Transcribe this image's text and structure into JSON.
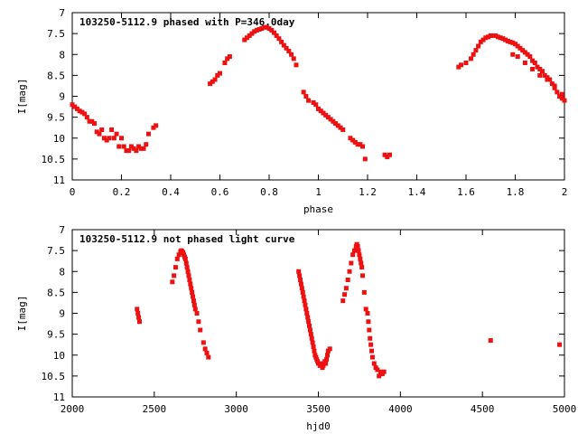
{
  "chart_data": [
    {
      "type": "scatter",
      "title": "103250-5112.9 phased with P=346.0day",
      "xlabel": "phase",
      "ylabel": "I[mag]",
      "xlim": [
        0,
        2
      ],
      "ylim": [
        7,
        11
      ],
      "y_inverted": true,
      "x_ticks": [
        "0",
        "0.2",
        "0.4",
        "0.6",
        "0.8",
        "1",
        "1.2",
        "1.4",
        "1.6",
        "1.8",
        "2"
      ],
      "y_ticks": [
        "7",
        "7.5",
        "8",
        "8.5",
        "9",
        "9.5",
        "10",
        "10.5",
        "11"
      ],
      "grid": false,
      "marker_color": "#ee1111",
      "series": [
        {
          "x": [
            0.0,
            0.01,
            0.02,
            0.03,
            0.04,
            0.05,
            0.06,
            0.07,
            0.08,
            0.09,
            0.1,
            0.11,
            0.12,
            0.13,
            0.14,
            0.15,
            0.16,
            0.17,
            0.18,
            0.19,
            0.2,
            0.21,
            0.22,
            0.23,
            0.24,
            0.25,
            0.26,
            0.27,
            0.28,
            0.29,
            0.3,
            0.31,
            0.33,
            0.34,
            0.56,
            0.57,
            0.58,
            0.59,
            0.6,
            0.62,
            0.63,
            0.64,
            0.7,
            0.71,
            0.72,
            0.73,
            0.74,
            0.75,
            0.76,
            0.77,
            0.78,
            0.79,
            0.8,
            0.81,
            0.82,
            0.83,
            0.84,
            0.85,
            0.86,
            0.87,
            0.88,
            0.89,
            0.9,
            0.91,
            0.94,
            0.95,
            0.96,
            0.98,
            0.99,
            1.0,
            1.01,
            1.02,
            1.03,
            1.04,
            1.05,
            1.06,
            1.07,
            1.08,
            1.09,
            1.1,
            1.13,
            1.14,
            1.15,
            1.16,
            1.17,
            1.18,
            1.19,
            1.27,
            1.28,
            1.29,
            1.57,
            1.58,
            1.6,
            1.62,
            1.63,
            1.64,
            1.65,
            1.66,
            1.67,
            1.68,
            1.69,
            1.7,
            1.71,
            1.72,
            1.73,
            1.74,
            1.75,
            1.76,
            1.77,
            1.78,
            1.79,
            1.8,
            1.81,
            1.82,
            1.83,
            1.84,
            1.85,
            1.86,
            1.87,
            1.88,
            1.89,
            1.9,
            1.91,
            1.92,
            1.93,
            1.94,
            1.95,
            1.96,
            1.97,
            1.98,
            1.99,
            2.0,
            1.79,
            1.81,
            1.84,
            1.87,
            1.9,
            1.93,
            1.96,
            1.99
          ],
          "y": [
            9.2,
            9.25,
            9.3,
            9.35,
            9.38,
            9.42,
            9.5,
            9.6,
            9.6,
            9.65,
            9.85,
            9.9,
            9.8,
            10.0,
            10.05,
            10.0,
            9.8,
            10.0,
            9.9,
            10.2,
            10.0,
            10.2,
            10.3,
            10.3,
            10.2,
            10.25,
            10.3,
            10.2,
            10.25,
            10.25,
            10.15,
            9.9,
            9.75,
            9.7,
            8.7,
            8.65,
            8.6,
            8.5,
            8.45,
            8.2,
            8.1,
            8.05,
            7.65,
            7.6,
            7.55,
            7.5,
            7.45,
            7.42,
            7.4,
            7.38,
            7.35,
            7.35,
            7.38,
            7.42,
            7.48,
            7.55,
            7.62,
            7.7,
            7.78,
            7.85,
            7.92,
            8.0,
            8.1,
            8.25,
            8.9,
            9.0,
            9.1,
            9.15,
            9.2,
            9.3,
            9.35,
            9.4,
            9.45,
            9.5,
            9.55,
            9.6,
            9.65,
            9.7,
            9.75,
            9.8,
            10.0,
            10.05,
            10.1,
            10.15,
            10.15,
            10.2,
            10.5,
            10.4,
            10.45,
            10.4,
            8.3,
            8.25,
            8.2,
            8.1,
            8.0,
            7.9,
            7.8,
            7.7,
            7.65,
            7.6,
            7.58,
            7.55,
            7.55,
            7.55,
            7.58,
            7.6,
            7.62,
            7.65,
            7.68,
            7.7,
            7.72,
            7.75,
            7.8,
            7.85,
            7.9,
            7.95,
            8.0,
            8.05,
            8.15,
            8.2,
            8.3,
            8.35,
            8.4,
            8.5,
            8.55,
            8.6,
            8.7,
            8.8,
            8.9,
            9.0,
            9.05,
            9.1,
            8.0,
            8.05,
            8.2,
            8.35,
            8.5,
            8.6,
            8.75,
            8.95
          ]
        }
      ]
    },
    {
      "type": "scatter",
      "title": "103250-5112.9 not phased light curve",
      "xlabel": "hjd0",
      "ylabel": "I[mag]",
      "xlim": [
        2000,
        5000
      ],
      "ylim": [
        7,
        11
      ],
      "y_inverted": true,
      "x_ticks": [
        "2000",
        "2500",
        "3000",
        "3500",
        "4000",
        "4500",
        "5000"
      ],
      "y_ticks": [
        "7",
        "7.5",
        "8",
        "8.5",
        "9",
        "9.5",
        "10",
        "10.5",
        "11"
      ],
      "grid": false,
      "marker_color": "#ee1111",
      "series": [
        {
          "x": [
            2395,
            2400,
            2405,
            2410,
            2610,
            2620,
            2630,
            2640,
            2650,
            2660,
            2665,
            2670,
            2675,
            2680,
            2685,
            2690,
            2695,
            2700,
            2705,
            2710,
            2715,
            2720,
            2725,
            2730,
            2735,
            2740,
            2745,
            2750,
            2760,
            2770,
            2780,
            2800,
            2810,
            2820,
            2830,
            3380,
            3385,
            3390,
            3395,
            3400,
            3405,
            3410,
            3415,
            3420,
            3425,
            3430,
            3435,
            3440,
            3445,
            3450,
            3455,
            3460,
            3465,
            3470,
            3475,
            3480,
            3485,
            3490,
            3495,
            3500,
            3505,
            3510,
            3515,
            3520,
            3525,
            3530,
            3535,
            3540,
            3545,
            3550,
            3555,
            3560,
            3570,
            3650,
            3660,
            3670,
            3680,
            3690,
            3700,
            3710,
            3720,
            3730,
            3735,
            3740,
            3745,
            3750,
            3755,
            3760,
            3765,
            3770,
            3780,
            3790,
            3800,
            3805,
            3810,
            3815,
            3820,
            3825,
            3830,
            3840,
            3850,
            3860,
            3870,
            3880,
            3890,
            3900,
            4550,
            4970
          ],
          "y": [
            8.9,
            9.0,
            9.1,
            9.2,
            8.25,
            8.1,
            7.9,
            7.7,
            7.6,
            7.52,
            7.5,
            7.52,
            7.55,
            7.6,
            7.65,
            7.7,
            7.8,
            7.9,
            8.0,
            8.1,
            8.2,
            8.3,
            8.4,
            8.5,
            8.6,
            8.7,
            8.8,
            8.9,
            9.0,
            9.2,
            9.4,
            9.7,
            9.85,
            9.95,
            10.05,
            8.0,
            8.1,
            8.2,
            8.3,
            8.4,
            8.5,
            8.6,
            8.7,
            8.8,
            8.9,
            9.0,
            9.1,
            9.2,
            9.3,
            9.4,
            9.5,
            9.6,
            9.7,
            9.8,
            9.9,
            10.0,
            10.05,
            10.1,
            10.15,
            10.2,
            10.2,
            10.25,
            10.25,
            10.2,
            10.3,
            10.25,
            10.2,
            10.15,
            10.2,
            10.1,
            10.0,
            9.9,
            9.85,
            8.7,
            8.55,
            8.4,
            8.2,
            8.0,
            7.8,
            7.6,
            7.5,
            7.4,
            7.35,
            7.4,
            7.5,
            7.6,
            7.7,
            7.8,
            7.9,
            8.1,
            8.5,
            8.9,
            9.0,
            9.2,
            9.4,
            9.6,
            9.75,
            9.9,
            10.05,
            10.2,
            10.3,
            10.35,
            10.5,
            10.4,
            10.45,
            10.4,
            9.65,
            9.75
          ]
        }
      ]
    }
  ]
}
